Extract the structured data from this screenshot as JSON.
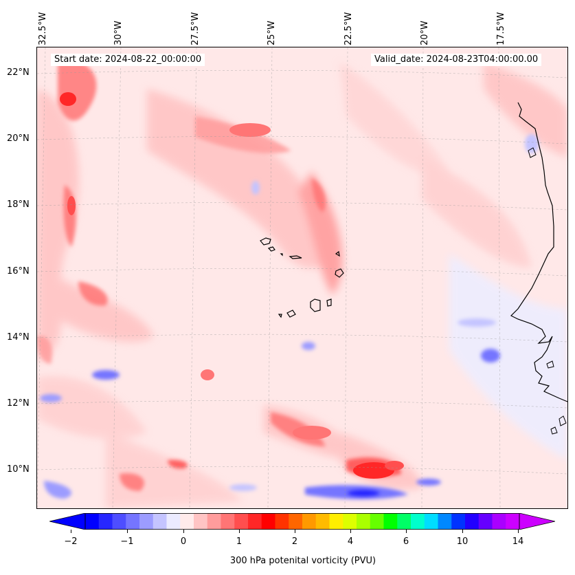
{
  "map": {
    "start_date_text": "Start date: 2024-08-22_00:00:00",
    "valid_date_text": "Valid_date: 2024-08-23T04:00:00.00",
    "longitude_labels": [
      "32.5°W",
      "30°W",
      "27.5°W",
      "25°W",
      "22.5°W",
      "20°W",
      "17.5°W"
    ],
    "latitude_labels": [
      "22°N",
      "20°N",
      "18°N",
      "16°N",
      "14°N",
      "12°N",
      "10°N"
    ],
    "field": "300 hPa potential vorticity",
    "background_color": "#fff0f0",
    "coastline_color": "#000000"
  },
  "colorbar": {
    "label": "300 hPa potenital vorticity (PVU)",
    "tick_labels": [
      "−2",
      "−1",
      "0",
      "1",
      "2",
      "4",
      "6",
      "10",
      "14"
    ],
    "colors": [
      "#0000ff",
      "#2727ff",
      "#4e4eff",
      "#7575ff",
      "#9c9cff",
      "#c4c4ff",
      "#ebebff",
      "#ffebeb",
      "#ffc4c4",
      "#ff9c9c",
      "#ff7575",
      "#ff4e4e",
      "#ff2727",
      "#ff0000",
      "#ff3300",
      "#ff6600",
      "#ff9900",
      "#ffbb00",
      "#ffee00",
      "#ddff00",
      "#aaff00",
      "#66ff00",
      "#00ff00",
      "#00ff66",
      "#00ffcc",
      "#00ddff",
      "#0088ff",
      "#0033ff",
      "#2200ff",
      "#6600ff",
      "#aa00ff",
      "#cc00ff"
    ],
    "extend_low_color": "#0000ff",
    "extend_high_color": "#cc00ff"
  }
}
